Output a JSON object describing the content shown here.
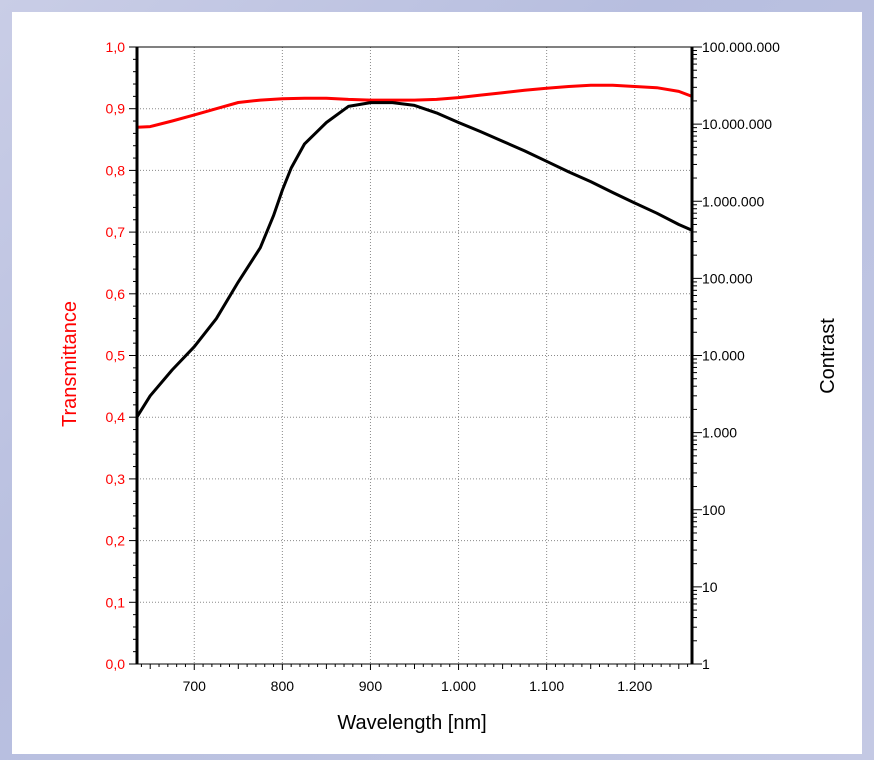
{
  "colors": {
    "transmittance": "#ff0000",
    "contrast": "#000000",
    "grid": "#8a8a8a",
    "left_axis_text": "#ff0000",
    "right_axis_text": "#000000"
  },
  "chart_data": {
    "type": "line",
    "title": "",
    "xlabel": "Wavelength [nm]",
    "ylabel_left": "Transmittance",
    "ylabel_right": "Contrast",
    "xlim": [
      635,
      1265
    ],
    "ylim_left": [
      0.0,
      1.0
    ],
    "ylim_right": [
      1,
      100000000
    ],
    "yscale_right": "log",
    "grid": true,
    "x_ticks": [
      700,
      800,
      900,
      1000,
      1100,
      1200
    ],
    "x_tick_labels": [
      "700",
      "800",
      "900",
      "1.000",
      "1.100",
      "1.200"
    ],
    "y_left_ticks": [
      0.0,
      0.1,
      0.2,
      0.3,
      0.4,
      0.5,
      0.6,
      0.7,
      0.8,
      0.9,
      1.0
    ],
    "y_left_tick_labels": [
      "0,0",
      "0,1",
      "0,2",
      "0,3",
      "0,4",
      "0,5",
      "0,6",
      "0,7",
      "0,8",
      "0,9",
      "1,0"
    ],
    "y_right_ticks": [
      1,
      10,
      100,
      1000,
      10000,
      100000,
      1000000,
      10000000,
      100000000
    ],
    "y_right_tick_labels": [
      "1",
      "10",
      "100",
      "1.000",
      "10.000",
      "100.000",
      "1.000.000",
      "10.000.000",
      "100.000.000"
    ],
    "series": [
      {
        "axis": "left",
        "x": [
          635,
          650,
          675,
          700,
          725,
          750,
          775,
          800,
          825,
          850,
          875,
          900,
          925,
          950,
          975,
          1000,
          1025,
          1050,
          1075,
          1100,
          1125,
          1150,
          1175,
          1200,
          1225,
          1250,
          1265
        ],
        "y": [
          0.87,
          0.871,
          0.88,
          0.89,
          0.9,
          0.91,
          0.914,
          0.916,
          0.917,
          0.917,
          0.915,
          0.914,
          0.914,
          0.914,
          0.915,
          0.918,
          0.922,
          0.926,
          0.93,
          0.933,
          0.936,
          0.938,
          0.938,
          0.936,
          0.934,
          0.928,
          0.92
        ]
      },
      {
        "axis": "right",
        "x": [
          635,
          650,
          675,
          700,
          725,
          750,
          775,
          790,
          800,
          810,
          825,
          850,
          875,
          900,
          925,
          950,
          975,
          1000,
          1025,
          1050,
          1075,
          1100,
          1125,
          1150,
          1175,
          1200,
          1225,
          1250,
          1265
        ],
        "y": [
          1600,
          3000,
          6500,
          13000,
          30000,
          90000,
          250000,
          650000,
          1400000,
          2700000,
          5500000,
          10500000,
          17000000,
          19000000,
          19000000,
          17500000,
          14000000,
          10500000,
          8000000,
          6000000,
          4500000,
          3300000,
          2400000,
          1800000,
          1300000,
          950000,
          700000,
          500000,
          420000
        ]
      }
    ]
  }
}
